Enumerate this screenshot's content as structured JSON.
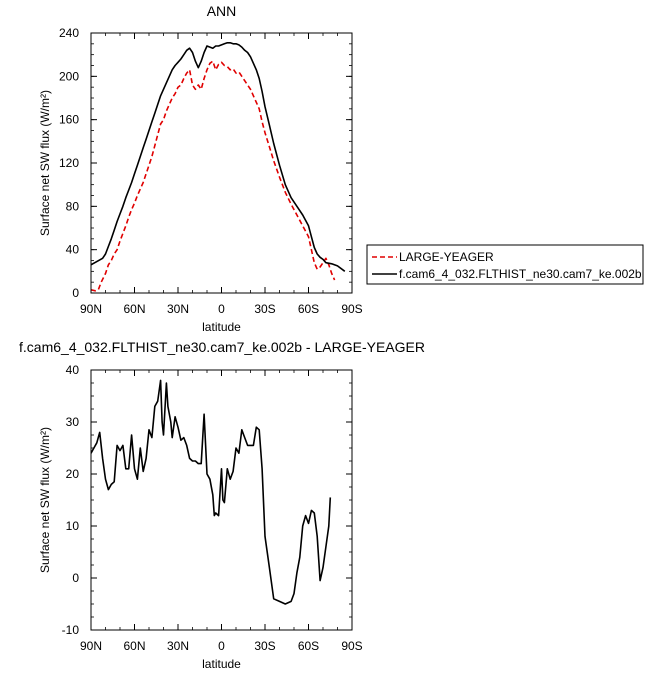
{
  "figure": {
    "top_title": "ANN",
    "bottom_title": "f.cam6_4_032.FLTHIST_ne30.cam7_ke.002b - LARGE-YEAGER"
  },
  "chart_data": [
    {
      "type": "line",
      "title": "ANN",
      "xlabel": "latitude",
      "ylabel": "Surface net SW flux (W/m²)",
      "xlim": [
        90,
        -90
      ],
      "ylim": [
        0,
        240
      ],
      "x_ticks": [
        90,
        60,
        30,
        0,
        -30,
        -60,
        -90
      ],
      "x_tick_labels": [
        "90N",
        "60N",
        "30N",
        "0",
        "30S",
        "60S",
        "90S"
      ],
      "y_ticks": [
        0,
        40,
        80,
        120,
        160,
        200,
        240
      ],
      "y_tick_labels": [
        "0",
        "40",
        "80",
        "120",
        "160",
        "200",
        "240"
      ],
      "legend_position": "right, outside plot",
      "series": [
        {
          "name": "LARGE-YEAGER",
          "color": "#e00000",
          "dash": true,
          "x": [
            90,
            87,
            85,
            83,
            80,
            78,
            76,
            74,
            72,
            70,
            68,
            66,
            64,
            62,
            60,
            58,
            56,
            54,
            52,
            50,
            48,
            46,
            44,
            42,
            40,
            38,
            36,
            34,
            32,
            30,
            28,
            26,
            24,
            22,
            20,
            18,
            16,
            14,
            12,
            10,
            8,
            6,
            4,
            2,
            0,
            -2,
            -4,
            -6,
            -8,
            -10,
            -12,
            -14,
            -16,
            -18,
            -20,
            -22,
            -24,
            -26,
            -28,
            -30,
            -33,
            -36,
            -40,
            -44,
            -48,
            -52,
            -56,
            -60,
            -62,
            -64,
            -66,
            -68,
            -70,
            -72,
            -74,
            -76,
            -78
          ],
          "y": [
            3,
            2,
            3,
            10,
            18,
            26,
            30,
            36,
            40,
            48,
            55,
            62,
            70,
            77,
            83,
            90,
            96,
            102,
            110,
            118,
            126,
            136,
            146,
            156,
            160,
            168,
            174,
            180,
            184,
            190,
            192,
            198,
            203,
            206,
            192,
            188,
            192,
            188,
            198,
            206,
            212,
            214,
            206,
            211,
            213,
            210,
            209,
            206,
            207,
            203,
            204,
            200,
            196,
            192,
            188,
            182,
            176,
            170,
            158,
            148,
            135,
            122,
            107,
            93,
            82,
            72,
            62,
            52,
            40,
            28,
            22,
            24,
            28,
            32,
            26,
            18,
            12
          ]
        },
        {
          "name": "f.cam6_4_032.FLTHIST_ne30.cam7_ke.002b",
          "color": "#000000",
          "dash": false,
          "x": [
            90,
            86,
            82,
            80,
            78,
            76,
            74,
            72,
            70,
            68,
            66,
            64,
            62,
            60,
            58,
            56,
            54,
            52,
            50,
            48,
            46,
            44,
            42,
            40,
            38,
            36,
            34,
            32,
            30,
            28,
            26,
            24,
            22,
            20,
            18,
            16,
            14,
            12,
            10,
            8,
            6,
            4,
            2,
            0,
            -2,
            -4,
            -6,
            -8,
            -10,
            -12,
            -14,
            -16,
            -18,
            -20,
            -22,
            -24,
            -26,
            -28,
            -30,
            -33,
            -36,
            -40,
            -44,
            -48,
            -52,
            -56,
            -60,
            -62,
            -64,
            -66,
            -68,
            -70,
            -72,
            -76,
            -80,
            -85
          ],
          "y": [
            26,
            29,
            32,
            36,
            43,
            50,
            58,
            66,
            73,
            80,
            88,
            95,
            102,
            110,
            118,
            126,
            134,
            142,
            150,
            158,
            166,
            174,
            182,
            188,
            194,
            200,
            206,
            210,
            213,
            216,
            220,
            224,
            226,
            222,
            214,
            208,
            214,
            222,
            228,
            227,
            226,
            228,
            228,
            229,
            230,
            231,
            231,
            230,
            230,
            229,
            227,
            224,
            222,
            218,
            212,
            206,
            198,
            186,
            172,
            155,
            138,
            118,
            100,
            88,
            80,
            72,
            62,
            52,
            42,
            36,
            33,
            31,
            28,
            27,
            25,
            20
          ]
        }
      ]
    },
    {
      "type": "line",
      "title": "f.cam6_4_032.FLTHIST_ne30.cam7_ke.002b - LARGE-YEAGER",
      "xlabel": "latitude",
      "ylabel": "Surface net SW flux (W/m²)",
      "xlim": [
        90,
        -90
      ],
      "ylim": [
        -10,
        40
      ],
      "x_ticks": [
        90,
        60,
        30,
        0,
        -30,
        -60,
        -90
      ],
      "x_tick_labels": [
        "90N",
        "60N",
        "30N",
        "0",
        "30S",
        "60S",
        "90S"
      ],
      "y_ticks": [
        -10,
        0,
        10,
        20,
        30,
        40
      ],
      "y_tick_labels": [
        "-10",
        "0",
        "10",
        "20",
        "30",
        "40"
      ],
      "series": [
        {
          "color": "#000000",
          "x": [
            90,
            88,
            86,
            84,
            82,
            80,
            78,
            76,
            74,
            72,
            70,
            68,
            66,
            64,
            62,
            60,
            58,
            56,
            54,
            52,
            50,
            48,
            46,
            44,
            42,
            41,
            40,
            38,
            37,
            35,
            34,
            32,
            30,
            28,
            26,
            24,
            22,
            20,
            18,
            16,
            14,
            12,
            10,
            8,
            6,
            5,
            4,
            2,
            0,
            -1,
            -2,
            -4,
            -6,
            -8,
            -10,
            -12,
            -14,
            -16,
            -18,
            -20,
            -22,
            -24,
            -26,
            -28,
            -30,
            -33,
            -36,
            -40,
            -44,
            -48,
            -50,
            -52,
            -54,
            -56,
            -58,
            -60,
            -62,
            -64,
            -66,
            -68,
            -70,
            -72,
            -74,
            -75
          ],
          "y": [
            24,
            25,
            26,
            28,
            23,
            19,
            17,
            18,
            18.5,
            25.5,
            24.5,
            25.5,
            21,
            21,
            27.5,
            21,
            19,
            25,
            20.5,
            23,
            28.5,
            27,
            33,
            34,
            38,
            30,
            27.5,
            37.5,
            33,
            30,
            27,
            31,
            29,
            26.5,
            27,
            25.5,
            23,
            22.5,
            22.5,
            22,
            22,
            31.5,
            20,
            19,
            16,
            12,
            12.5,
            12,
            21,
            15,
            14.5,
            21,
            19,
            20.5,
            25,
            24,
            28.5,
            27,
            25.5,
            25.5,
            25.5,
            29,
            28.5,
            21,
            8,
            2,
            -4,
            -4.5,
            -5,
            -4.5,
            -3,
            1,
            4,
            10,
            12,
            10.5,
            13,
            12.5,
            8,
            -0.5,
            2,
            6,
            10,
            15.5
          ]
        }
      ]
    }
  ]
}
